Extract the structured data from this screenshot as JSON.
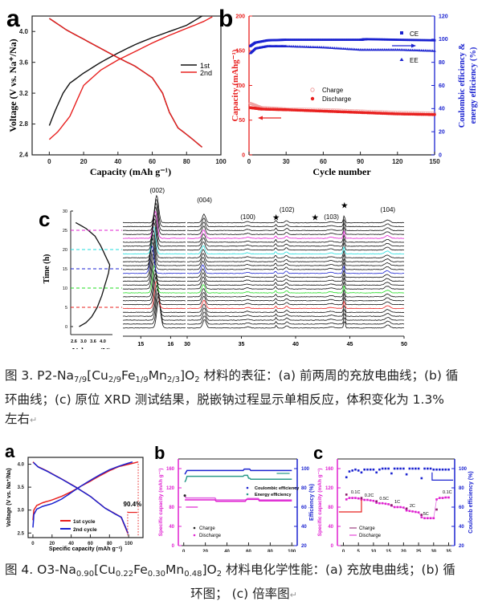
{
  "figure3": {
    "panel_a": {
      "label": "a"
    },
    "panel_b": {
      "label": "b"
    },
    "panel_c": {
      "label": "c"
    },
    "caption": {
      "prefix": "图 3. P2-Na",
      "sub1": "7/9",
      "mid1": "[Cu",
      "sub2": "2/9",
      "mid2": "Fe",
      "sub3": "1/9",
      "mid3": "Mn",
      "sub4": "2/3",
      "mid4": "]O",
      "sub5": "2",
      "rest_line1": " 材料的表征：(a) 前两周的充放电曲线；(b) 循",
      "line2": "环曲线；(c) 原位 XRD 测试结果，脱嵌钠过程显示单相反应，体积变化为 1.3%",
      "line3": "左右"
    }
  },
  "figure4": {
    "panel_a": {
      "label": "a"
    },
    "panel_b": {
      "label": "b"
    },
    "panel_c": {
      "label": "c"
    },
    "caption": {
      "prefix": "图 4. O3-Na",
      "sub1": "0.90",
      "mid1": "[Cu",
      "sub2": "0.22",
      "mid2": "Fe",
      "sub3": "0.30",
      "mid3": "Mn",
      "sub4": "0.48",
      "mid4": "]O",
      "sub5": "2",
      "rest_line1": " 材料电化学性能：(a) 充放电曲线；(b) 循",
      "line2": "环图； (c) 倍率图"
    }
  },
  "colors": {
    "red": "#e8201f",
    "blue": "#1a22d0",
    "magenta": "#e020d0",
    "teal": "#2a9a8a",
    "cyan": "#22dddd",
    "green": "#22dd22",
    "pink": "#e060e0"
  },
  "chart_data": [
    {
      "id": "fig3a",
      "type": "line",
      "xlabel": "Capacity (mAh g⁻¹)",
      "ylabel": "Voltage (V vs. Na⁺/Na)",
      "xlim": [
        -10,
        100
      ],
      "ylim": [
        2.4,
        4.2
      ],
      "xticks": [
        0,
        20,
        40,
        60,
        80,
        100
      ],
      "yticks": [
        2.4,
        2.8,
        3.2,
        3.6,
        4.0
      ],
      "legend": "right",
      "series": [
        {
          "name": "1st",
          "color": "#111111",
          "charge": [
            [
              0,
              2.78
            ],
            [
              3,
              2.95
            ],
            [
              8,
              3.2
            ],
            [
              12,
              3.33
            ],
            [
              20,
              3.46
            ],
            [
              30,
              3.6
            ],
            [
              40,
              3.72
            ],
            [
              50,
              3.83
            ],
            [
              60,
              3.92
            ],
            [
              70,
              4.0
            ],
            [
              80,
              4.08
            ],
            [
              89,
              4.2
            ]
          ],
          "discharge": [
            [
              0,
              4.17
            ],
            [
              10,
              4.02
            ],
            [
              20,
              3.9
            ],
            [
              30,
              3.78
            ],
            [
              40,
              3.66
            ],
            [
              50,
              3.55
            ],
            [
              60,
              3.4
            ],
            [
              66,
              3.2
            ],
            [
              70,
              2.95
            ],
            [
              75,
              2.75
            ],
            [
              82,
              2.63
            ],
            [
              89,
              2.5
            ]
          ]
        },
        {
          "name": "2nd",
          "color": "#e8201f",
          "charge": [
            [
              0,
              2.6
            ],
            [
              5,
              2.7
            ],
            [
              12,
              2.9
            ],
            [
              20,
              3.3
            ],
            [
              30,
              3.5
            ],
            [
              40,
              3.63
            ],
            [
              50,
              3.74
            ],
            [
              60,
              3.85
            ],
            [
              70,
              3.95
            ],
            [
              80,
              4.04
            ],
            [
              90,
              4.13
            ],
            [
              95,
              4.19
            ]
          ],
          "discharge": [
            [
              0,
              4.17
            ],
            [
              10,
              4.02
            ],
            [
              20,
              3.9
            ],
            [
              30,
              3.78
            ],
            [
              40,
              3.66
            ],
            [
              50,
              3.55
            ],
            [
              60,
              3.4
            ],
            [
              66,
              3.2
            ],
            [
              70,
              2.95
            ],
            [
              75,
              2.75
            ],
            [
              82,
              2.63
            ],
            [
              89,
              2.5
            ]
          ]
        }
      ]
    },
    {
      "id": "fig3b",
      "type": "scatter",
      "xlabel": "Cycle number",
      "ylabel_left": "Capacity (mAhg⁻¹)",
      "ylabel_right": "Coulombic efficiency & energy efficiency (%)",
      "xlim": [
        0,
        150
      ],
      "ylim_left": [
        0,
        200
      ],
      "ylim_right": [
        0,
        120
      ],
      "xticks": [
        0,
        30,
        60,
        90,
        120,
        150
      ],
      "yticks_left": [
        0,
        50,
        100,
        150,
        200
      ],
      "yticks_right": [
        0,
        20,
        40,
        60,
        80,
        100,
        120
      ],
      "legend": [
        "CE",
        "EE",
        "Charge",
        "Discharge"
      ],
      "series": [
        {
          "name": "CE",
          "axis": "right",
          "color": "#1a22d0",
          "marker": "square",
          "points": [
            [
              1,
              94
            ],
            [
              5,
              97
            ],
            [
              15,
              99
            ],
            [
              30,
              99.5
            ],
            [
              60,
              99.5
            ],
            [
              90,
              99.5
            ],
            [
              95,
              100
            ],
            [
              120,
              99.5
            ],
            [
              150,
              99
            ]
          ]
        },
        {
          "name": "EE",
          "axis": "right",
          "color": "#1a22d0",
          "marker": "triangle",
          "points": [
            [
              1,
              88
            ],
            [
              5,
              92
            ],
            [
              15,
              94
            ],
            [
              30,
              94
            ],
            [
              60,
              93
            ],
            [
              90,
              91
            ],
            [
              120,
              91
            ],
            [
              150,
              90
            ]
          ]
        },
        {
          "name": "Charge",
          "axis": "left",
          "color": "#f0a0a0",
          "marker": "circle-open",
          "points": [
            [
              1,
              73
            ],
            [
              10,
              67
            ],
            [
              30,
              65
            ],
            [
              60,
              64
            ],
            [
              90,
              62
            ],
            [
              120,
              60
            ],
            [
              150,
              59
            ]
          ]
        },
        {
          "name": "Discharge",
          "axis": "left",
          "color": "#e8201f",
          "marker": "circle",
          "points": [
            [
              1,
              68
            ],
            [
              10,
              66
            ],
            [
              30,
              65
            ],
            [
              60,
              63
            ],
            [
              90,
              61
            ],
            [
              120,
              59
            ],
            [
              150,
              58
            ]
          ]
        }
      ]
    },
    {
      "id": "fig3c",
      "type": "line",
      "subplots": [
        {
          "name": "voltage-time",
          "xlabel": "Voltage (V)",
          "ylabel": "Time (h)",
          "xticks": [
            2.6,
            3.0,
            3.6,
            4.0
          ],
          "yticks": [
            0,
            5,
            10,
            15,
            20,
            25,
            30
          ],
          "ylim": [
            0,
            30
          ]
        },
        {
          "name": "xrd-low",
          "xticks": [
            15,
            16
          ],
          "peak_labels": [
            "(002)"
          ]
        },
        {
          "name": "xrd-high",
          "xlabel": "2θ(°)",
          "xticks": [
            30,
            35,
            40,
            45,
            50
          ],
          "peak_labels": [
            "(004)",
            "(100)",
            "★",
            "(102)",
            "★",
            "(103)",
            "★",
            "(104)"
          ]
        }
      ],
      "highlight_times": [
        5,
        10,
        15,
        20,
        25
      ],
      "highlight_colors": [
        "#e8201f",
        "#22dd22",
        "#1a22d0",
        "#22dddd",
        "#e020d0"
      ]
    },
    {
      "id": "fig4a",
      "type": "line",
      "xlabel": "Specific capacity (mAh g⁻¹)",
      "ylabel": "Voltage (V vs. Na⁺/Na)",
      "xlim": [
        -5,
        115
      ],
      "ylim": [
        2.4,
        4.15
      ],
      "xticks": [
        0,
        20,
        40,
        60,
        80,
        100
      ],
      "yticks": [
        2.5,
        3.0,
        3.5,
        4.0
      ],
      "annotation": "90.4%",
      "series": [
        {
          "name": "1st cycle",
          "color": "#e8201f"
        },
        {
          "name": "2nd cycle",
          "color": "#1a22d0"
        }
      ]
    },
    {
      "id": "fig4b",
      "type": "scatter",
      "xlabel": "Cycle number",
      "ylabel_left": "Specific capacity (mAh g⁻¹)",
      "ylabel_right": "Efficiency (%)",
      "xlim": [
        -5,
        105
      ],
      "ylim_left": [
        0,
        180
      ],
      "ylim_right": [
        20,
        110
      ],
      "xticks": [
        0,
        20,
        40,
        60,
        80,
        100
      ],
      "yticks_left": [
        0,
        40,
        80,
        120,
        160
      ],
      "yticks_right": [
        20,
        40,
        60,
        80,
        100
      ],
      "legend": [
        "Coulombic efficiency",
        "Energy efficiency",
        "Charge",
        "Discharge"
      ]
    },
    {
      "id": "fig4c",
      "type": "scatter",
      "xlabel": "Cycle number",
      "ylabel_left": "Specific capacity (mAh g⁻¹)",
      "ylabel_right": "Coulomb efficiency (%)",
      "xlim": [
        -2,
        37
      ],
      "ylim_left": [
        0,
        180
      ],
      "ylim_right": [
        20,
        110
      ],
      "xticks": [
        0,
        5,
        10,
        15,
        20,
        25,
        30,
        35
      ],
      "yticks_left": [
        0,
        40,
        80,
        120,
        160
      ],
      "yticks_right": [
        20,
        40,
        60,
        80,
        100
      ],
      "rate_labels": [
        "0.1C",
        "0.2C",
        "0.5C",
        "1C",
        "2C",
        "5C",
        "0.1C"
      ],
      "legend": [
        "Charge",
        "Discharge"
      ],
      "discharge": [
        [
          1,
          96
        ],
        [
          2,
          99
        ],
        [
          3,
          99
        ],
        [
          4,
          99
        ],
        [
          5,
          98
        ],
        [
          6,
          96
        ],
        [
          7,
          95
        ],
        [
          8,
          95
        ],
        [
          9,
          94
        ],
        [
          10,
          93
        ],
        [
          11,
          89
        ],
        [
          12,
          88
        ],
        [
          13,
          88
        ],
        [
          14,
          87
        ],
        [
          15,
          86
        ],
        [
          16,
          83
        ],
        [
          17,
          80
        ],
        [
          18,
          80
        ],
        [
          19,
          80
        ],
        [
          20,
          79
        ],
        [
          21,
          73
        ],
        [
          22,
          72
        ],
        [
          23,
          71
        ],
        [
          24,
          70
        ],
        [
          25,
          69
        ],
        [
          26,
          59
        ],
        [
          27,
          57
        ],
        [
          28,
          57
        ],
        [
          29,
          57
        ],
        [
          30,
          57
        ],
        [
          31,
          96
        ],
        [
          32,
          99
        ],
        [
          33,
          99
        ],
        [
          34,
          100
        ],
        [
          35,
          100
        ]
      ],
      "ce": [
        [
          1,
          91
        ],
        [
          2,
          97
        ],
        [
          3,
          98
        ],
        [
          4,
          99
        ],
        [
          5,
          98
        ],
        [
          6,
          96
        ],
        [
          7,
          99
        ],
        [
          8,
          99
        ],
        [
          9,
          99
        ],
        [
          10,
          99
        ],
        [
          11,
          96
        ],
        [
          12,
          99
        ],
        [
          13,
          100
        ],
        [
          14,
          100
        ],
        [
          15,
          100
        ],
        [
          16,
          95
        ],
        [
          17,
          100
        ],
        [
          18,
          100
        ],
        [
          19,
          100
        ],
        [
          20,
          100
        ],
        [
          21,
          94
        ],
        [
          22,
          100
        ],
        [
          23,
          100
        ],
        [
          24,
          100
        ],
        [
          25,
          100
        ],
        [
          26,
          90
        ],
        [
          27,
          100
        ],
        [
          28,
          100
        ],
        [
          29,
          100
        ],
        [
          30,
          99
        ],
        [
          31,
          99
        ],
        [
          32,
          99
        ],
        [
          33,
          99
        ],
        [
          34,
          99
        ],
        [
          35,
          99
        ]
      ]
    }
  ]
}
